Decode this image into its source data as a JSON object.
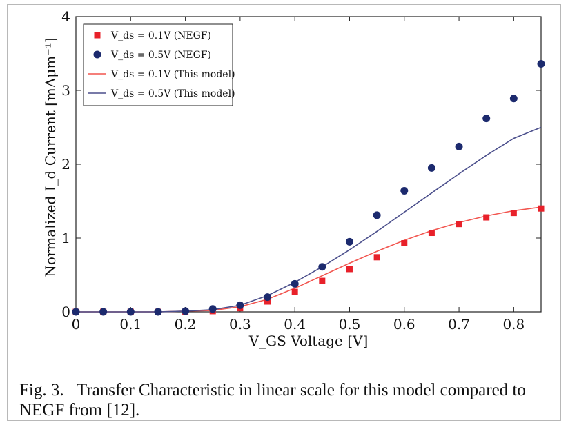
{
  "chart_data": {
    "type": "scatter",
    "xlabel": "V_GS Voltage [V]",
    "ylabel": "Normalized I_d Current [mAμm⁻¹]",
    "xlim": [
      0,
      0.85
    ],
    "ylim": [
      0,
      4
    ],
    "xticks": [
      "0",
      "0.1",
      "0.2",
      "0.3",
      "0.4",
      "0.5",
      "0.6",
      "0.7",
      "0.8"
    ],
    "yticks": [
      "0",
      "1",
      "2",
      "3",
      "4"
    ],
    "grid": false,
    "legend_position": "top-left",
    "series": [
      {
        "name": "V_ds = 0.1V (NEGF)",
        "kind": "marker-square",
        "color": "#e8212a",
        "x": [
          0,
          0.05,
          0.1,
          0.15,
          0.2,
          0.25,
          0.3,
          0.35,
          0.4,
          0.45,
          0.5,
          0.55,
          0.6,
          0.65,
          0.7,
          0.75,
          0.8,
          0.85
        ],
        "y": [
          0,
          0,
          0,
          0,
          0,
          0.01,
          0.05,
          0.14,
          0.27,
          0.42,
          0.58,
          0.74,
          0.93,
          1.07,
          1.19,
          1.28,
          1.34,
          1.4
        ]
      },
      {
        "name": "V_ds = 0.5V (NEGF)",
        "kind": "marker-circle",
        "color": "#1c2a6e",
        "x": [
          0,
          0.05,
          0.1,
          0.15,
          0.2,
          0.25,
          0.3,
          0.35,
          0.4,
          0.45,
          0.5,
          0.55,
          0.6,
          0.65,
          0.7,
          0.75,
          0.8,
          0.85
        ],
        "y": [
          0,
          0,
          0,
          0,
          0.01,
          0.04,
          0.09,
          0.2,
          0.38,
          0.61,
          0.95,
          1.31,
          1.64,
          1.95,
          2.24,
          2.62,
          2.89,
          3.36
        ]
      },
      {
        "name": "V_ds = 0.1V (This model)",
        "kind": "line",
        "color": "#f2554f",
        "x": [
          0,
          0.05,
          0.1,
          0.15,
          0.2,
          0.25,
          0.3,
          0.35,
          0.4,
          0.45,
          0.5,
          0.55,
          0.6,
          0.65,
          0.7,
          0.75,
          0.8,
          0.85
        ],
        "y": [
          0,
          0,
          0,
          0,
          0.01,
          0.02,
          0.07,
          0.17,
          0.32,
          0.49,
          0.66,
          0.82,
          0.97,
          1.1,
          1.21,
          1.3,
          1.37,
          1.42
        ]
      },
      {
        "name": "V_ds = 0.5V (This model)",
        "kind": "line",
        "color": "#4b4f8c",
        "x": [
          0,
          0.05,
          0.1,
          0.15,
          0.2,
          0.25,
          0.3,
          0.35,
          0.4,
          0.45,
          0.5,
          0.55,
          0.6,
          0.65,
          0.7,
          0.75,
          0.8,
          0.85
        ],
        "y": [
          0,
          0,
          0,
          0,
          0.01,
          0.03,
          0.09,
          0.22,
          0.4,
          0.61,
          0.84,
          1.09,
          1.35,
          1.61,
          1.87,
          2.12,
          2.35,
          2.5
        ]
      }
    ]
  },
  "caption": {
    "fig_label": "Fig. 3.",
    "text": "Transfer Characteristic in linear scale for this model compared to NEGF from [12]."
  }
}
